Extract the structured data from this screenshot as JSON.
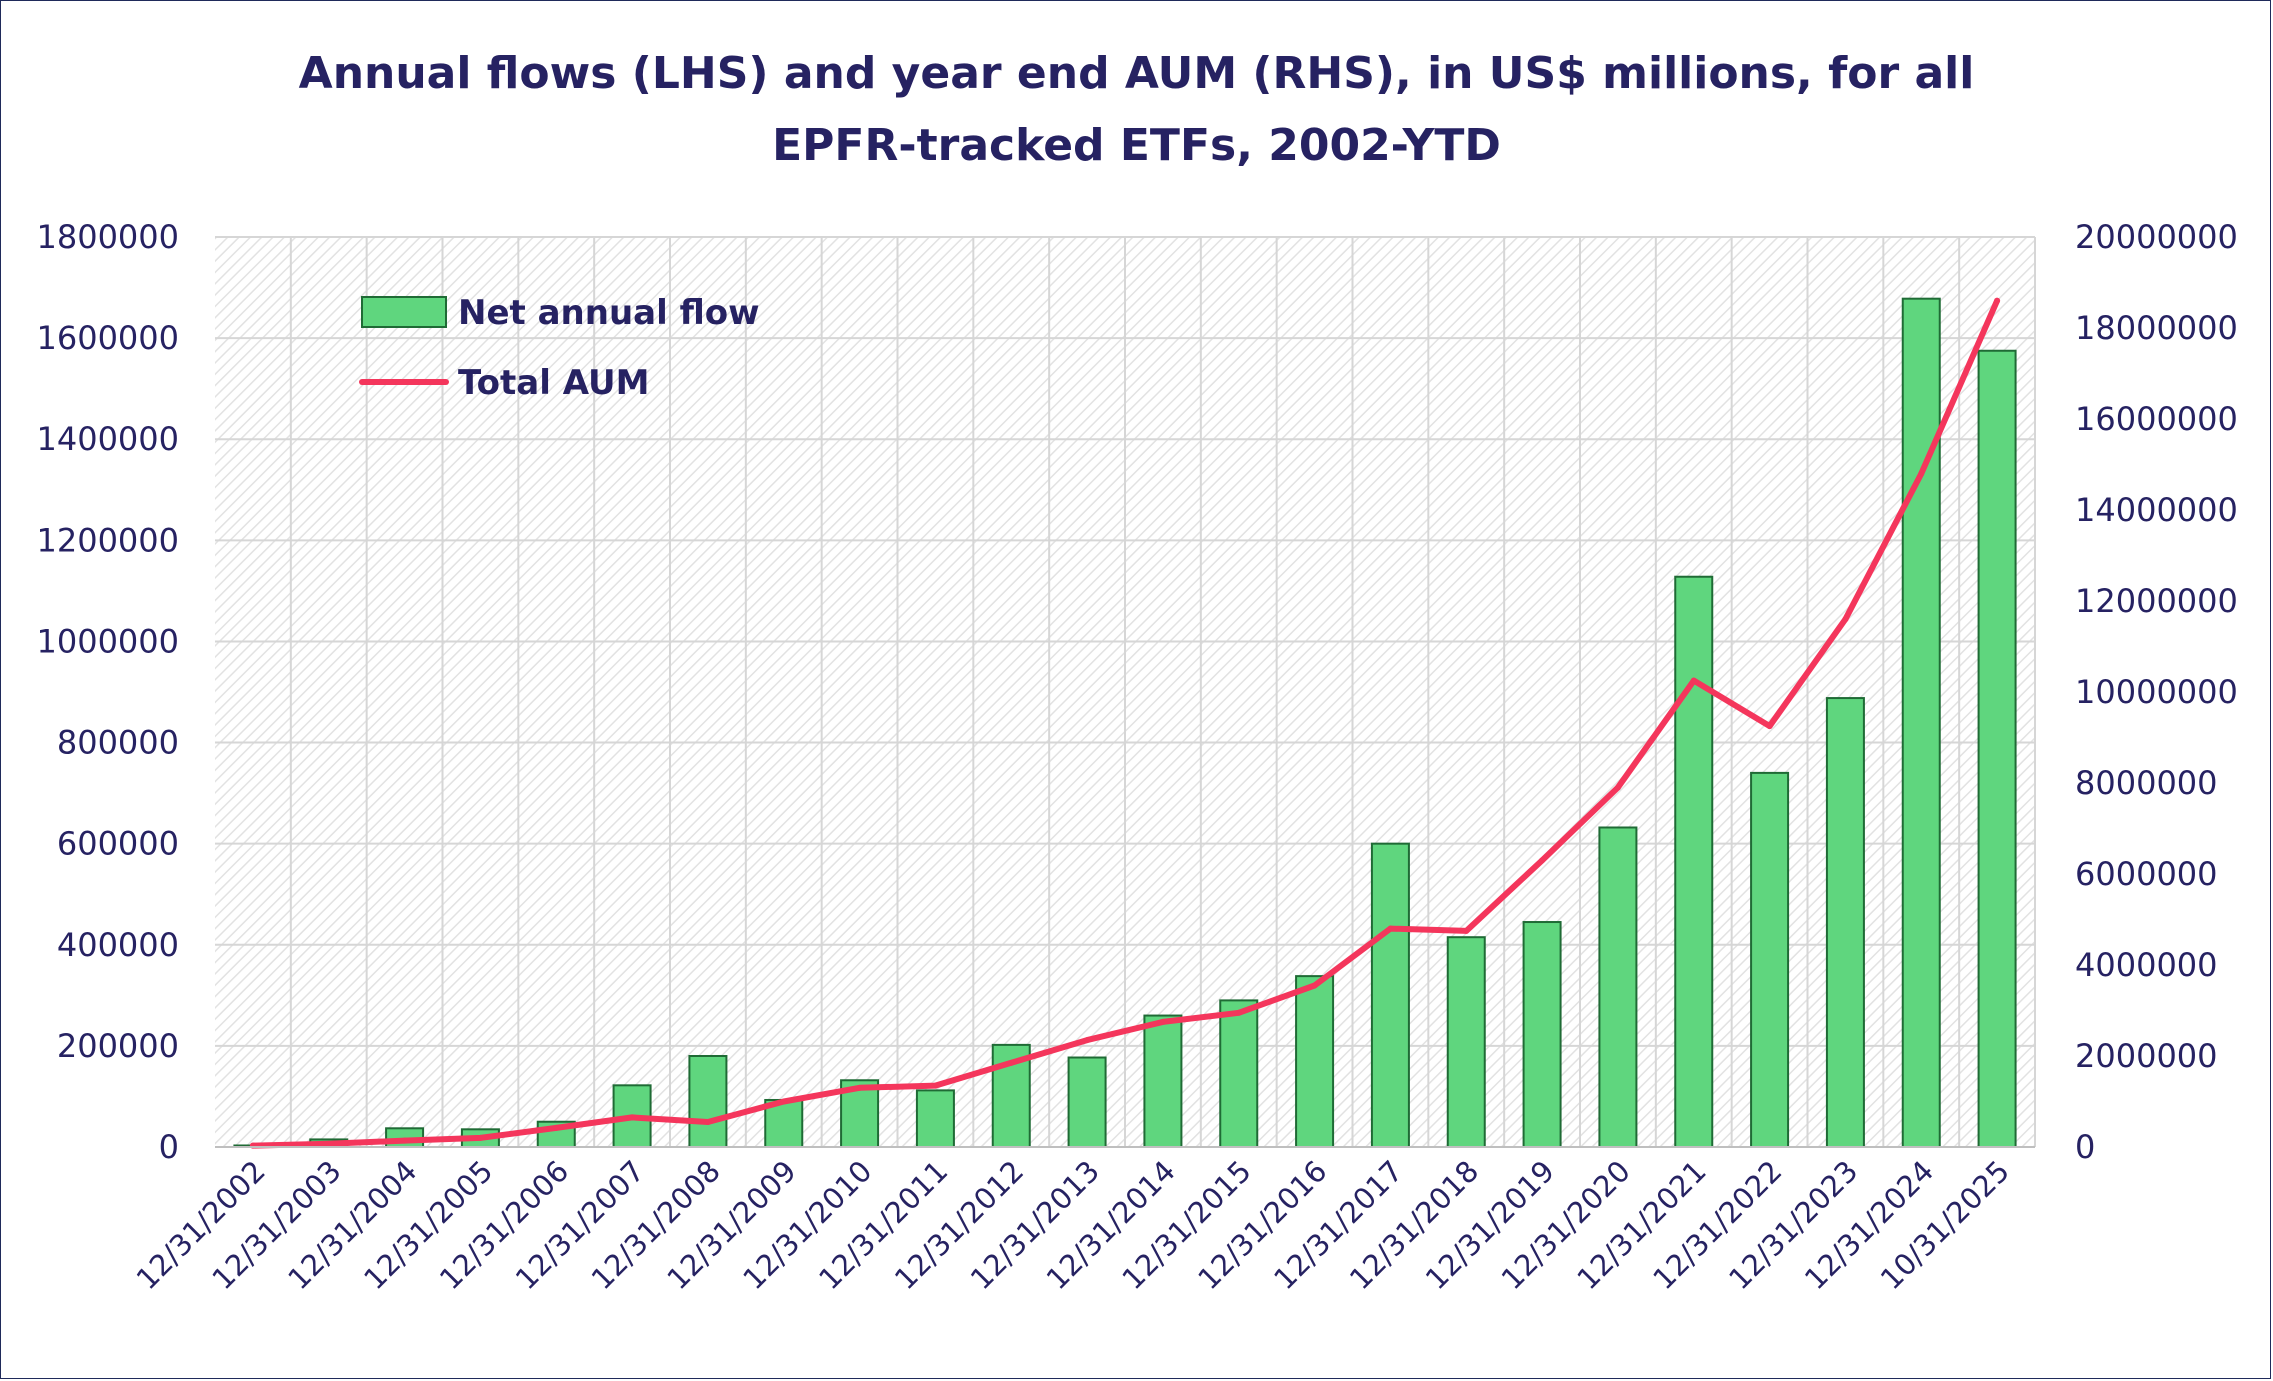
{
  "chart_data": {
    "type": "bar+line",
    "title_line1": "Annual flows (LHS) and year end AUM (RHS), in US$ millions, for all",
    "title_line2": "EPFR-tracked ETFs, 2002-YTD",
    "categories": [
      "12/31/2002",
      "12/31/2003",
      "12/31/2004",
      "12/31/2005",
      "12/31/2006",
      "12/31/2007",
      "12/31/2008",
      "12/31/2009",
      "12/31/2010",
      "12/31/2011",
      "12/31/2012",
      "12/31/2013",
      "12/31/2014",
      "12/31/2015",
      "12/31/2016",
      "12/31/2017",
      "12/31/2018",
      "12/31/2019",
      "12/31/2020",
      "12/31/2021",
      "12/31/2022",
      "12/31/2023",
      "12/31/2024",
      "10/31/2025"
    ],
    "series": [
      {
        "name": "Net annual flow",
        "type": "bar",
        "axis": "left",
        "color": "#5fd67e",
        "values": [
          3000,
          15000,
          37000,
          35000,
          50000,
          122000,
          180000,
          93000,
          132000,
          112000,
          202000,
          177000,
          260000,
          290000,
          338000,
          600000,
          415000,
          445000,
          632000,
          1128000,
          740000,
          888000,
          1678000,
          1575000
        ]
      },
      {
        "name": "Total AUM",
        "type": "line",
        "axis": "right",
        "color": "#f4365c",
        "values": [
          30000,
          70000,
          140000,
          200000,
          420000,
          650000,
          550000,
          1000000,
          1300000,
          1350000,
          1850000,
          2350000,
          2750000,
          2950000,
          3550000,
          4800000,
          4750000,
          6300000,
          7900000,
          10250000,
          9250000,
          11600000,
          14800000,
          18600000
        ]
      }
    ],
    "y_left": {
      "min": 0,
      "max": 1800000,
      "ticks": [
        "0",
        "200000",
        "400000",
        "600000",
        "800000",
        "1000000",
        "1200000",
        "1400000",
        "1600000",
        "1800000"
      ]
    },
    "y_right": {
      "min": 0,
      "max": 20000000,
      "ticks": [
        "0",
        "2000000",
        "4000000",
        "6000000",
        "8000000",
        "10000000",
        "12000000",
        "14000000",
        "16000000",
        "18000000",
        "20000000"
      ]
    },
    "grid": true,
    "legend_position": "top-left"
  }
}
